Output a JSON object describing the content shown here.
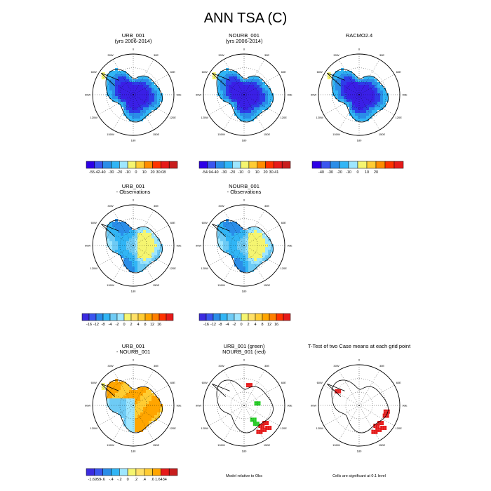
{
  "chart_data": {
    "type": "heatmap",
    "title": "ANN TSA (C)",
    "panels": [
      {
        "id": "p1",
        "title1": "URB_001",
        "title2": "(yrs 2006-2014)",
        "scheme": "abs",
        "labels_level": "mid",
        "colorbar": {
          "colors": [
            "#2d00e6",
            "#3a55ef",
            "#2a8de8",
            "#31b5f5",
            "#9ee6ff",
            "#f5f570",
            "#ffcc33",
            "#ff8c00",
            "#ff3300",
            "#e61a1a",
            "#c81e1e"
          ],
          "labels": [
            "-55.42",
            "-40",
            "-30",
            "-20",
            "-10",
            "0",
            "10",
            "20",
            "30.08"
          ]
        }
      },
      {
        "id": "p2",
        "title1": "NOURB_001",
        "title2": "(yrs 2006-2014)",
        "scheme": "abs",
        "labels_level": "mid",
        "colorbar": {
          "colors": [
            "#2d00e6",
            "#3a55ef",
            "#2a8de8",
            "#31b5f5",
            "#9ee6ff",
            "#f5f570",
            "#ffcc33",
            "#ff8c00",
            "#ff3300",
            "#e61a1a",
            "#c81e1e"
          ],
          "labels": [
            "-54.94",
            "-40",
            "-30",
            "-20",
            "-10",
            "0",
            "10",
            "20",
            "30.41"
          ]
        }
      },
      {
        "id": "p3",
        "title1": "RACMO2.4",
        "title2": "",
        "scheme": "abs",
        "labels_level": "mid",
        "colorbar": {
          "colors": [
            "#2d00e6",
            "#3a55ef",
            "#2a8de8",
            "#31b5f5",
            "#9ee6ff",
            "#f5f570",
            "#ffcc33",
            "#ff8c00",
            "#ff3300",
            "#e61a1a"
          ],
          "labels": [
            "-40",
            "-30",
            "-20",
            "-10",
            "0",
            "10",
            "20"
          ]
        }
      },
      {
        "id": "p4",
        "title1": "URB_001",
        "title2": "- Observations",
        "scheme": "diff",
        "labels_level": "mid",
        "colorbar": {
          "colors": [
            "#3b2be0",
            "#3a55ef",
            "#2a8de8",
            "#31b5f5",
            "#6ecbf5",
            "#9ee6ff",
            "#f5f570",
            "#ffe066",
            "#ffcc33",
            "#ffa500",
            "#ff7f00",
            "#ff3300",
            "#e61a1a"
          ],
          "labels": [
            "-16",
            "-12",
            "-8",
            "-4",
            "-2",
            "0",
            "2",
            "4",
            "8",
            "12",
            "16"
          ]
        }
      },
      {
        "id": "p5",
        "title1": "NOURB_001",
        "title2": "- Observations",
        "scheme": "diff",
        "labels_level": "mid",
        "colorbar": {
          "colors": [
            "#3b2be0",
            "#3a55ef",
            "#2a8de8",
            "#31b5f5",
            "#6ecbf5",
            "#9ee6ff",
            "#f5f570",
            "#ffe066",
            "#ffcc33",
            "#ffa500",
            "#ff7f00",
            "#ff3300",
            "#e61a1a"
          ],
          "labels": [
            "-16",
            "-12",
            "-8",
            "-4",
            "-2",
            "0",
            "2",
            "4",
            "8",
            "12",
            "16"
          ]
        }
      },
      {
        "id": "p6",
        "title1": "URB_001",
        "title2": "- NOURB_001",
        "scheme": "urbdiff",
        "labels_level": "mid",
        "colorbar": {
          "colors": [
            "#3b2be0",
            "#3a55ef",
            "#2a8de8",
            "#31b5f5",
            "#9ee6ff",
            "#f5f570",
            "#ffe066",
            "#ffcc33",
            "#ffa500",
            "#e61a1a",
            "#c81e1e"
          ],
          "labels": [
            "-1.6959",
            "-.6",
            "-.4",
            "-.2",
            "0",
            ".2",
            ".4",
            ".6",
            "1.6434"
          ]
        }
      },
      {
        "id": "p7",
        "title1": "URB_001 (green)",
        "title2": "NOURB_001 (red)",
        "scheme": "sig",
        "labels_level": "mid",
        "footer": "Model relative to Obs"
      },
      {
        "id": "p8",
        "title1": "T-Test of two Case means at each grid point",
        "title2": "",
        "scheme": "ttest",
        "labels_level": "mid",
        "footer": "Cells are significant at 0.1 level"
      }
    ],
    "grid_labels": {
      "lon": [
        "0",
        "30E",
        "60E",
        "90E",
        "120E",
        "150E",
        "180",
        "150W",
        "120W",
        "90W",
        "60W",
        "30W"
      ]
    }
  }
}
